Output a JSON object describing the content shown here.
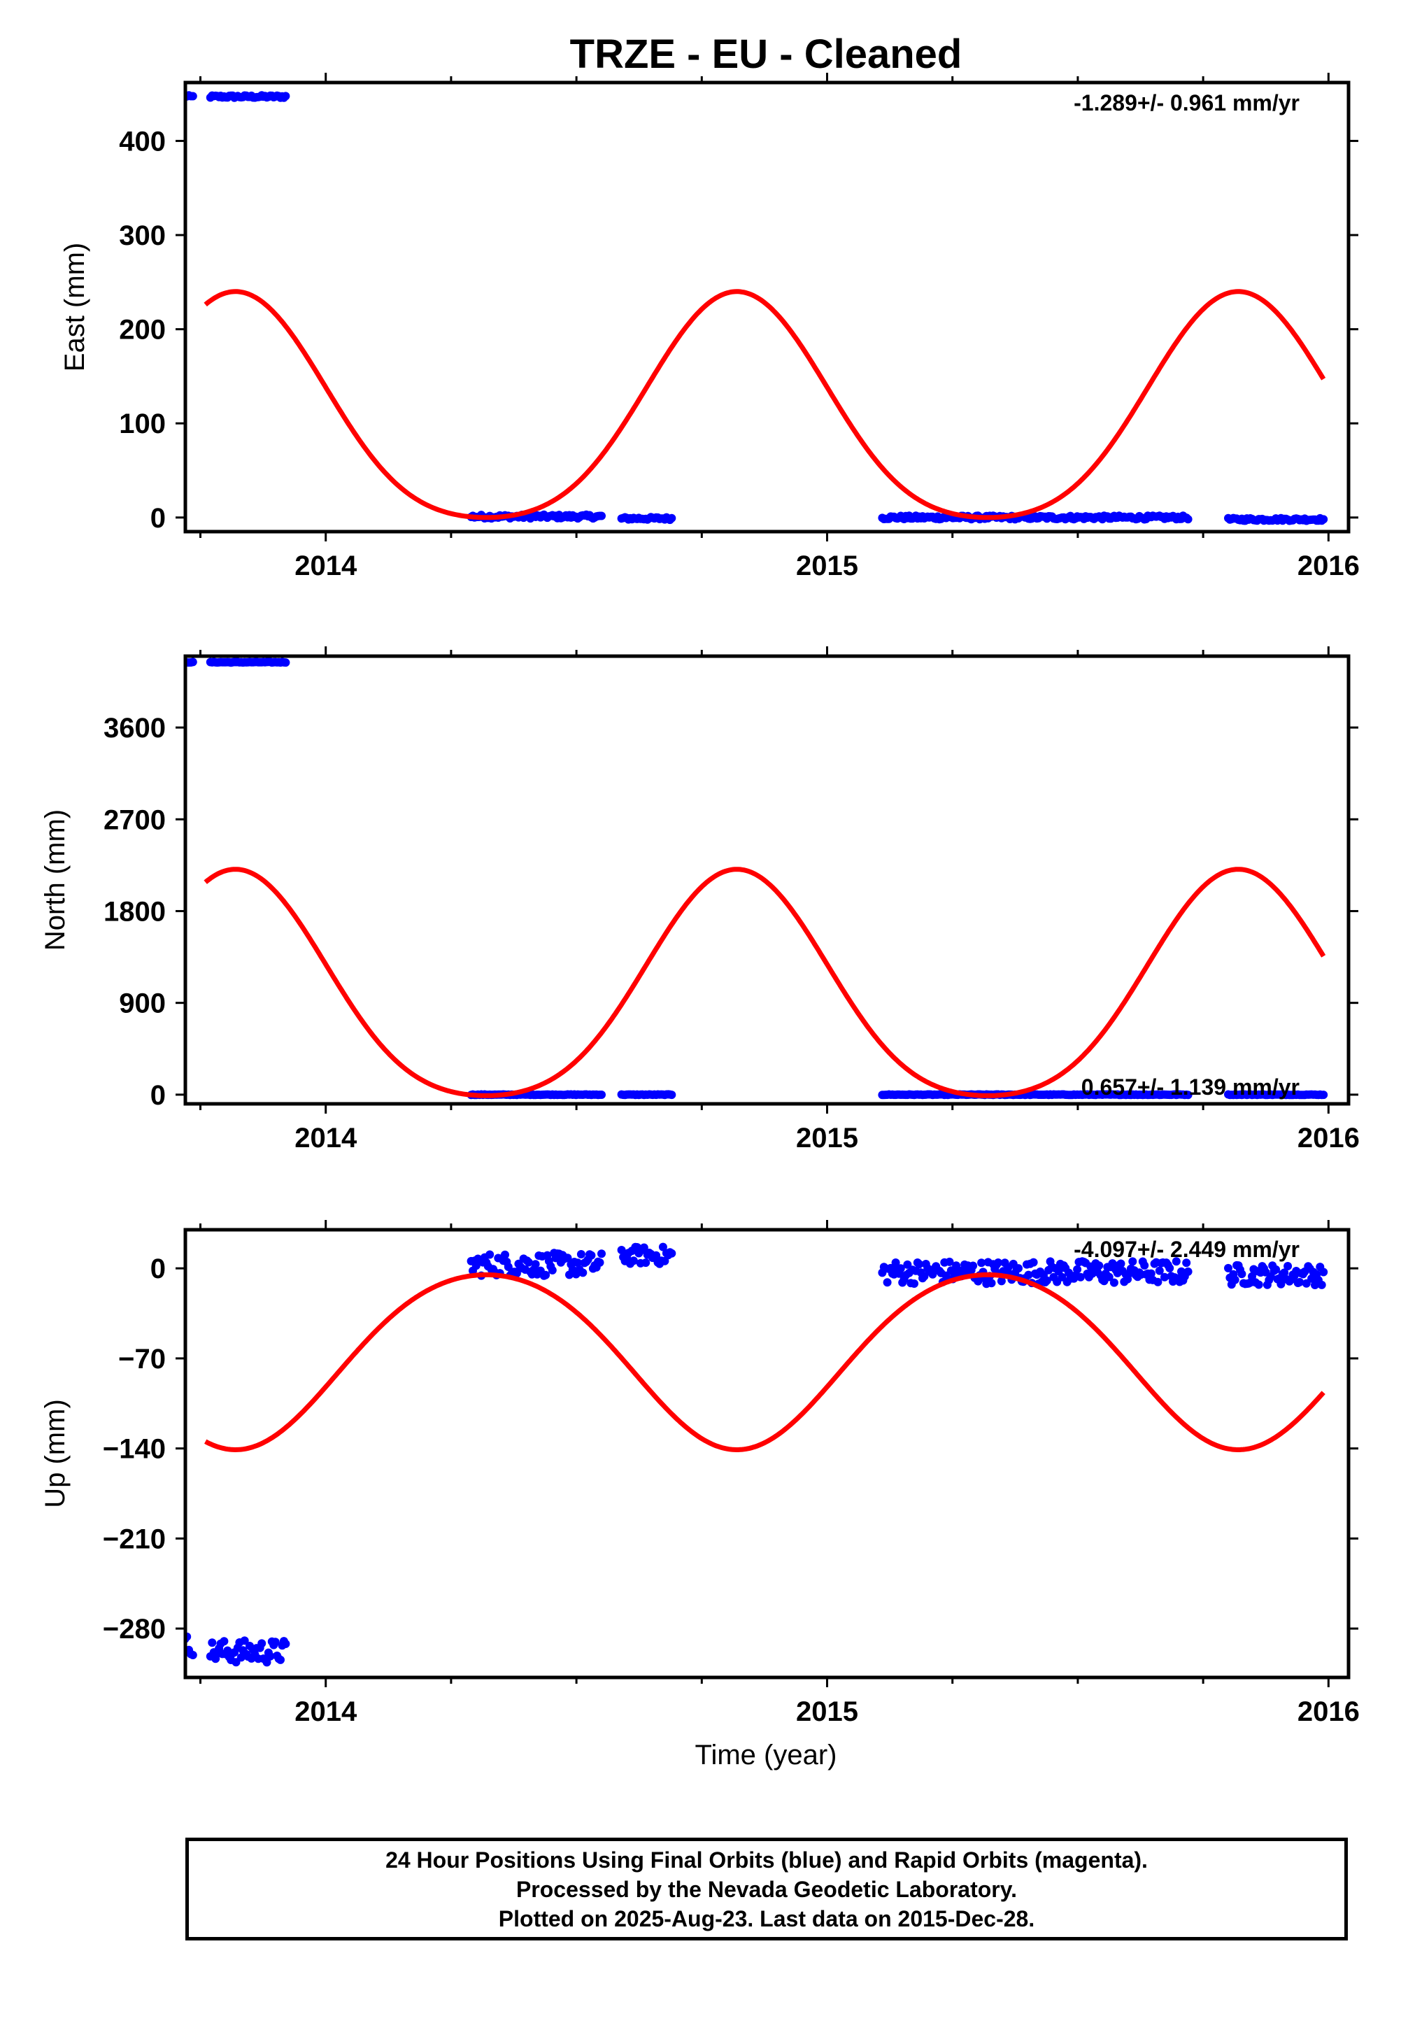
{
  "title": "TRZE  - EU - Cleaned",
  "colors": {
    "final_orbits": "#0000ff",
    "model": "#ff0000",
    "frame": "#000000"
  },
  "xlabel": "Time (year)",
  "footer": {
    "line1": "24 Hour Positions Using Final Orbits (blue) and Rapid Orbits (magenta).",
    "line2": "Processed by the Nevada Geodetic Laboratory.",
    "line3": "Plotted on 2025-Aug-23. Last data on 2015-Dec-28."
  },
  "chart_data": [
    {
      "type": "scatter",
      "panel": "east",
      "ylabel": "East (mm)",
      "rate_text": "-1.289+/- 0.961 mm/yr",
      "xlim": [
        2013.72,
        2016.04
      ],
      "ylim": [
        -15,
        462
      ],
      "xticks": [
        2014,
        2015,
        2016
      ],
      "xtick_labels": [
        "2014",
        "2015",
        "2016"
      ],
      "yticks": [
        0,
        100,
        200,
        300,
        400
      ],
      "ytick_labels": [
        "0",
        "100",
        "200",
        "300",
        "400"
      ],
      "series": [
        {
          "kind": "points",
          "segments": [
            {
              "x0": 2013.715,
              "x1": 2013.735,
              "y": 447,
              "noise": 1.5
            },
            {
              "x0": 2013.77,
              "x1": 2013.92,
              "y": 447,
              "noise": 1.5
            },
            {
              "x0": 2014.29,
              "x1": 2014.55,
              "y": 1,
              "noise": 2
            },
            {
              "x0": 2014.59,
              "x1": 2014.69,
              "y": -1,
              "noise": 1.5
            },
            {
              "x0": 2015.11,
              "x1": 2015.72,
              "y": 0,
              "noise": 2
            },
            {
              "x0": 2015.8,
              "x1": 2015.99,
              "y": -2,
              "noise": 1.5
            }
          ]
        },
        {
          "kind": "model",
          "x0": 2013.76,
          "x1": 2015.99,
          "offset": 100,
          "amp1": 120,
          "amp2": 20,
          "phase_year": 2013.82
        }
      ]
    },
    {
      "type": "scatter",
      "panel": "north",
      "ylabel": "North (mm)",
      "rate_text": "0.657+/- 1.139 mm/yr",
      "xlim": [
        2013.72,
        2016.04
      ],
      "ylim": [
        -90,
        4300
      ],
      "xticks": [
        2014,
        2015,
        2016
      ],
      "xtick_labels": [
        "2014",
        "2015",
        "2016"
      ],
      "yticks": [
        0,
        900,
        1800,
        2700,
        3600
      ],
      "ytick_labels": [
        "0",
        "900",
        "1800",
        "2700",
        "3600"
      ],
      "series": [
        {
          "kind": "points",
          "segments": [
            {
              "x0": 2013.715,
              "x1": 2013.735,
              "y": 4240,
              "noise": 3
            },
            {
              "x0": 2013.77,
              "x1": 2013.92,
              "y": 4240,
              "noise": 3
            },
            {
              "x0": 2014.29,
              "x1": 2014.55,
              "y": 0,
              "noise": 3
            },
            {
              "x0": 2014.59,
              "x1": 2014.69,
              "y": 0,
              "noise": 3
            },
            {
              "x0": 2015.11,
              "x1": 2015.72,
              "y": 0,
              "noise": 3
            },
            {
              "x0": 2015.8,
              "x1": 2015.99,
              "y": 0,
              "noise": 3
            }
          ]
        },
        {
          "kind": "model",
          "x0": 2013.76,
          "x1": 2015.99,
          "offset": 920,
          "amp1": 1110,
          "amp2": 180,
          "phase_year": 2013.82
        }
      ]
    },
    {
      "type": "scatter",
      "panel": "up",
      "ylabel": "Up (mm)",
      "rate_text": "-4.097+/- 2.449 mm/yr",
      "xlim": [
        2013.72,
        2016.04
      ],
      "ylim": [
        -318,
        30
      ],
      "xticks": [
        2014,
        2015,
        2016
      ],
      "xtick_labels": [
        "2014",
        "2015",
        "2016"
      ],
      "yticks": [
        0,
        -70,
        -140,
        -210,
        -280
      ],
      "ytick_labels": [
        "0",
        "−70",
        "−140",
        "−210",
        "−280"
      ],
      "series": [
        {
          "kind": "points",
          "segments": [
            {
              "x0": 2013.715,
              "x1": 2013.735,
              "y": -293,
              "noise": 8
            },
            {
              "x0": 2013.77,
              "x1": 2013.92,
              "y": -298,
              "noise": 9
            },
            {
              "x0": 2014.29,
              "x1": 2014.55,
              "y": 3,
              "noise": 9
            },
            {
              "x0": 2014.59,
              "x1": 2014.69,
              "y": 10,
              "noise": 7
            },
            {
              "x0": 2015.11,
              "x1": 2015.72,
              "y": -3,
              "noise": 9
            },
            {
              "x0": 2015.8,
              "x1": 2015.99,
              "y": -5,
              "noise": 8
            }
          ]
        },
        {
          "kind": "model",
          "x0": 2013.76,
          "x1": 2015.99,
          "offset": -67,
          "amp1": -68,
          "amp2": -6,
          "phase_year": 2013.82
        }
      ]
    }
  ]
}
